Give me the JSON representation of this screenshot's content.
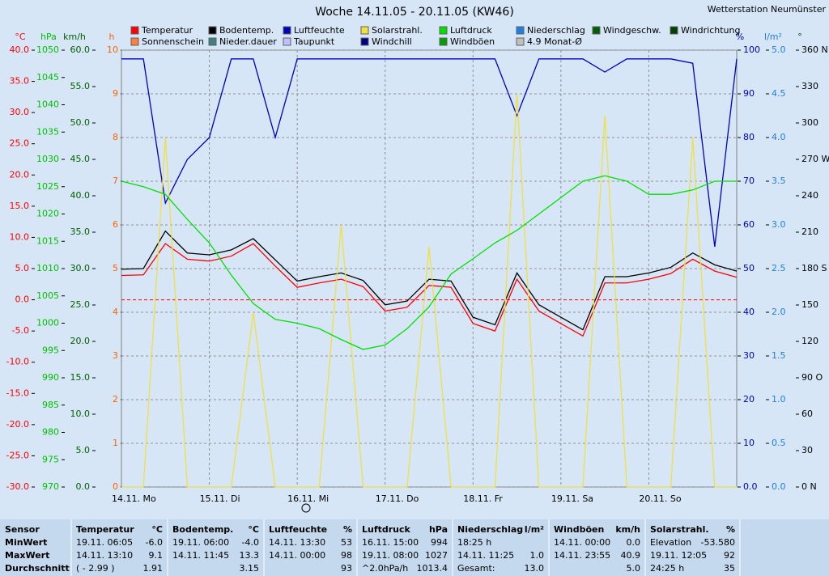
{
  "chart_data": {
    "type": "line",
    "title": "Woche 14.11.05 - 20.11.05 (KW46)",
    "station": "Wetterstation Neumünster",
    "x": [
      0,
      6,
      12,
      18,
      24,
      30,
      36,
      42,
      48,
      54,
      60,
      66,
      72,
      78,
      84,
      90,
      96,
      102,
      108,
      114,
      120,
      126,
      132,
      138,
      144,
      150,
      156,
      162,
      168
    ],
    "xlim": [
      0,
      168
    ],
    "xticks": [
      {
        "value": 0,
        "label": "14.11. Mo"
      },
      {
        "value": 24,
        "label": "15.11. Di"
      },
      {
        "value": 48,
        "label": "16.11. Mi"
      },
      {
        "value": 72,
        "label": "17.11. Do"
      },
      {
        "value": 96,
        "label": "18.11. Fr"
      },
      {
        "value": 120,
        "label": "19.11. Sa"
      },
      {
        "value": 144,
        "label": "20.11. So"
      }
    ],
    "grid": true,
    "axes": [
      {
        "label": "°C",
        "color": "#ff0000",
        "lim": [
          -30,
          40
        ],
        "ticks": [
          {
            "value": -30,
            "label": "-30.0"
          },
          {
            "value": -25,
            "label": "-25.0"
          },
          {
            "value": -20,
            "label": "-20.0"
          },
          {
            "value": -15,
            "label": "-15.0"
          },
          {
            "value": -10,
            "label": "-10.0"
          },
          {
            "value": -5,
            "label": "-5.0"
          },
          {
            "value": 0,
            "label": "0.0"
          },
          {
            "value": 5,
            "label": "5.0"
          },
          {
            "value": 10,
            "label": "10.0"
          },
          {
            "value": 15,
            "label": "15.0"
          },
          {
            "value": 20,
            "label": "20.0"
          },
          {
            "value": 25,
            "label": "25.0"
          },
          {
            "value": 30,
            "label": "30.0"
          },
          {
            "value": 35,
            "label": "35.0"
          },
          {
            "value": 40,
            "label": "40.0"
          }
        ]
      },
      {
        "label": "hPa",
        "color": "#00c000",
        "lim": [
          970,
          1050
        ],
        "ticks": [
          970,
          975,
          980,
          985,
          990,
          995,
          1000,
          1005,
          1010,
          1015,
          1020,
          1025,
          1030,
          1035,
          1040,
          1045,
          1050
        ]
      },
      {
        "label": "km/h",
        "color": "#006000",
        "lim": [
          0,
          60
        ],
        "ticks": [
          {
            "value": 0,
            "label": "0.0"
          },
          {
            "value": 5,
            "label": "5.0"
          },
          {
            "value": 10,
            "label": "10.0"
          },
          {
            "value": 15,
            "label": "15.0"
          },
          {
            "value": 20,
            "label": "20.0"
          },
          {
            "value": 25,
            "label": "25.0"
          },
          {
            "value": 30,
            "label": "30.0"
          },
          {
            "value": 35,
            "label": "35.0"
          },
          {
            "value": 40,
            "label": "40.0"
          },
          {
            "value": 45,
            "label": "45.0"
          },
          {
            "value": 50,
            "label": "50.0"
          },
          {
            "value": 55,
            "label": "55.0"
          },
          {
            "value": 60,
            "label": "60.0"
          }
        ]
      },
      {
        "label": "h",
        "color": "#ff6000",
        "lim": [
          0,
          10
        ],
        "ticks": [
          0,
          1,
          2,
          3,
          4,
          5,
          6,
          7,
          8,
          9,
          10
        ]
      },
      {
        "label": "%",
        "color": "#0000c0",
        "lim": [
          0,
          100
        ],
        "ticks": [
          {
            "value": 0,
            "label": "0.0"
          },
          10,
          20,
          30,
          40,
          50,
          60,
          70,
          80,
          90,
          100
        ]
      },
      {
        "label": "l/m²",
        "color": "#2080e0",
        "lim": [
          0,
          5
        ],
        "ticks": [
          {
            "value": 0,
            "label": "0.0"
          },
          0.5,
          {
            "value": 1,
            "label": "1.0"
          },
          1.5,
          {
            "value": 2,
            "label": "2.0"
          },
          2.5,
          {
            "value": 3,
            "label": "3.0"
          },
          3.5,
          {
            "value": 4,
            "label": "4.0"
          },
          4.5,
          {
            "value": 5,
            "label": "5.0"
          }
        ]
      },
      {
        "label": "°",
        "color": "#004000",
        "lim": [
          0,
          360
        ],
        "ticks": [
          {
            "value": 0,
            "label": "0 N"
          },
          30,
          60,
          {
            "value": 90,
            "label": "90 O"
          },
          120,
          150,
          {
            "value": 180,
            "label": "180 S"
          },
          210,
          240,
          {
            "value": 270,
            "label": "270 W"
          },
          300,
          330,
          {
            "value": 360,
            "label": "360 N"
          }
        ]
      }
    ],
    "series": [
      {
        "name": "Temperatur",
        "color": "#ff0000",
        "axis": 0,
        "values": [
          3.9,
          4,
          9,
          6.5,
          6.2,
          7,
          9,
          5.4,
          2,
          2.7,
          3.3,
          2.1,
          -1.8,
          -1.2,
          2.3,
          2,
          -3.8,
          -5,
          3.3,
          -1.8,
          -3.8,
          -5.8,
          2.7,
          2.7,
          3.3,
          4.2,
          6.5,
          4.6,
          3.6
        ]
      },
      {
        "name": "Bodentemp.",
        "color": "#000000",
        "axis": 0,
        "values": [
          4.9,
          5,
          11,
          7.5,
          7.2,
          8,
          9.8,
          6.4,
          3,
          3.7,
          4.3,
          3.1,
          -0.8,
          -0.2,
          3.3,
          3,
          -2.8,
          -4,
          4.3,
          -0.8,
          -2.8,
          -4.8,
          3.7,
          3.7,
          4.3,
          5.2,
          7.5,
          5.6,
          4.6
        ]
      },
      {
        "name": "Luftfeuchte",
        "color": "#0000c0",
        "axis": 4,
        "values": [
          98,
          98,
          65,
          75,
          80,
          98,
          98,
          80,
          98,
          98,
          98,
          98,
          98,
          98,
          98,
          98,
          98,
          98,
          85,
          98,
          98,
          98,
          95,
          98,
          98,
          98,
          97,
          55,
          98
        ]
      },
      {
        "name": "Solarstrahl.",
        "color": "#f0e040",
        "axis": 4,
        "values": [
          0,
          0,
          80,
          0,
          0,
          0,
          40,
          0,
          0,
          0,
          60,
          0,
          0,
          0,
          55,
          0,
          0,
          0,
          90,
          0,
          0,
          0,
          85,
          0,
          0,
          0,
          80,
          0,
          0
        ]
      },
      {
        "name": "Luftdruck",
        "color": "#00e000",
        "axis": 1,
        "values": [
          1026,
          1025,
          1023.6,
          1019,
          1014.7,
          1008.8,
          1003.6,
          1000.7,
          1000,
          999,
          997,
          995.2,
          996,
          999,
          1003,
          1009,
          1011.8,
          1014.7,
          1017,
          1020,
          1023,
          1026,
          1027,
          1026,
          1023.6,
          1023.6,
          1024.4,
          1026,
          1026
        ]
      },
      {
        "name": "Niederschlag",
        "color": "#2080e0"
      },
      {
        "name": "Windgeschw.",
        "color": "#006000"
      },
      {
        "name": "Windrichtung",
        "color": "#004000"
      },
      {
        "name": "Sonnenschein",
        "color": "#ff8040"
      },
      {
        "name": "Nieder.dauer",
        "color": "#408080"
      },
      {
        "name": "Taupunkt",
        "color": "#c0c0ff"
      },
      {
        "name": "Windchill",
        "color": "#000080"
      },
      {
        "name": "Windböen",
        "color": "#00a000"
      },
      {
        "name": "4.9 Monat-Ø",
        "color": "#c0c0c0"
      }
    ]
  },
  "table": {
    "columns": [
      {
        "header": "Sensor",
        "rows": [
          {
            "left": "MinWert"
          },
          {
            "left": "MaxWert"
          },
          {
            "left": "Durchschnitt"
          }
        ]
      },
      {
        "header": "Temperatur",
        "unit": "°C",
        "rows": [
          {
            "left": "19.11.  06:05",
            "right": "-6.0"
          },
          {
            "left": "14.11.  13:10",
            "right": "9.1"
          },
          {
            "left": "( - 2.99 )",
            "right": "1.91"
          }
        ]
      },
      {
        "header": "Bodentemp.",
        "unit": "°C",
        "rows": [
          {
            "left": "19.11.  06:00",
            "right": "-4.0"
          },
          {
            "left": "14.11.  11:45",
            "right": "13.3"
          },
          {
            "right": "3.15"
          }
        ]
      },
      {
        "header": "Luftfeuchte",
        "unit": "%",
        "rows": [
          {
            "left": "14.11.  13:30",
            "right": "53"
          },
          {
            "left": "14.11.  00:00",
            "right": "98"
          },
          {
            "right": "93"
          }
        ]
      },
      {
        "header": "Luftdruck",
        "unit": "hPa",
        "rows": [
          {
            "left": "16.11.  15:00",
            "right": "994"
          },
          {
            "left": "19.11.  08:00",
            "right": "1027"
          },
          {
            "left": "^2.0hPa/h",
            "right": "1013.4"
          }
        ]
      },
      {
        "header": "Niederschlag",
        "unit": "l/m²",
        "rows": [
          {
            "left": "18:25 h"
          },
          {
            "left": "14.11.  11:25",
            "right": "1.0"
          },
          {
            "left": "Gesamt:",
            "right": "13.0"
          }
        ]
      },
      {
        "header": "Windböen",
        "unit": "km/h",
        "rows": [
          {
            "left": "14.11.  00:00",
            "right": "0.0"
          },
          {
            "left": "14.11.  23:55",
            "right": "40.9"
          },
          {
            "right": "5.0"
          }
        ]
      },
      {
        "header": "Solarstrahl.",
        "unit": "%",
        "rows": [
          {
            "left": "Elevation",
            "right": "-53.580"
          },
          {
            "left": "19.11.  12:05",
            "right": "92"
          },
          {
            "left": "24:25 h",
            "right": "35"
          }
        ]
      }
    ]
  }
}
